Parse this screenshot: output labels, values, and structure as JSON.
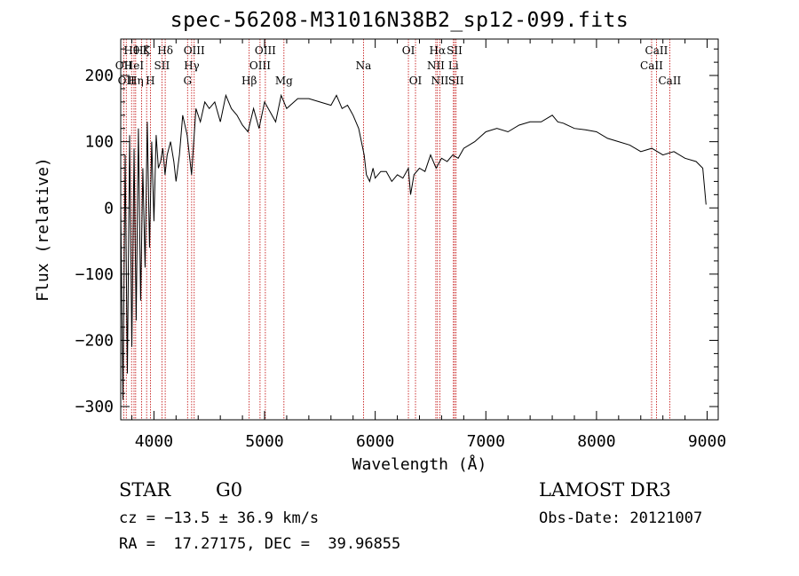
{
  "title": "spec-56208-M31016N38B2_sp12-099.fits",
  "info": {
    "object_class": "STAR",
    "subclass": "G0",
    "survey": "LAMOST DR3",
    "redshift_line": "cz = −13.5 ± 36.9 km/s",
    "obs_date_line": "Obs-Date: 20121007",
    "coords_line": "RA =  17.27175, DEC =  39.96855"
  },
  "colors": {
    "spectrum": "#000000",
    "line_marker": "#c00000",
    "axis": "#000000"
  },
  "chart_data": {
    "type": "line",
    "xlabel": "Wavelength (Å)",
    "ylabel": "Flux (relative)",
    "xlim": [
      3700,
      9100
    ],
    "ylim": [
      -320,
      255
    ],
    "x_ticks": [
      4000,
      5000,
      6000,
      7000,
      8000,
      9000
    ],
    "y_ticks": [
      200,
      100,
      0,
      -100,
      -200,
      -300
    ],
    "series": [
      {
        "x": [
          3700,
          3720,
          3740,
          3760,
          3780,
          3800,
          3820,
          3840,
          3860,
          3880,
          3900,
          3920,
          3940,
          3960,
          3980,
          4000,
          4020,
          4040,
          4060,
          4080,
          4100,
          4120,
          4150,
          4180,
          4200,
          4230,
          4260,
          4300,
          4340,
          4380,
          4420,
          4460,
          4500,
          4550,
          4600,
          4650,
          4700,
          4750,
          4800,
          4850,
          4900,
          4950,
          5000,
          5050,
          5100,
          5150,
          5200,
          5300,
          5400,
          5500,
          5600,
          5650,
          5700,
          5750,
          5800,
          5850,
          5900,
          5920,
          5950,
          5980,
          6000,
          6050,
          6100,
          6150,
          6200,
          6250,
          6300,
          6320,
          6350,
          6400,
          6450,
          6500,
          6550,
          6600,
          6650,
          6700,
          6750,
          6800,
          6900,
          7000,
          7100,
          7200,
          7300,
          7400,
          7500,
          7600,
          7650,
          7700,
          7800,
          7900,
          8000,
          8100,
          8200,
          8300,
          8400,
          8500,
          8600,
          8700,
          8800,
          8900,
          8960,
          8990
        ],
        "y": [
          0,
          -290,
          80,
          -250,
          110,
          -210,
          90,
          -170,
          120,
          -140,
          60,
          -90,
          130,
          -60,
          100,
          -20,
          110,
          60,
          70,
          90,
          50,
          80,
          100,
          70,
          40,
          80,
          140,
          110,
          50,
          150,
          130,
          160,
          150,
          160,
          130,
          170,
          150,
          140,
          125,
          115,
          150,
          120,
          160,
          145,
          130,
          170,
          150,
          165,
          165,
          160,
          155,
          170,
          150,
          155,
          140,
          120,
          80,
          50,
          40,
          60,
          45,
          55,
          55,
          40,
          50,
          45,
          60,
          20,
          50,
          60,
          55,
          80,
          60,
          75,
          70,
          80,
          75,
          90,
          100,
          115,
          120,
          115,
          125,
          130,
          130,
          140,
          130,
          128,
          120,
          118,
          115,
          105,
          100,
          95,
          85,
          90,
          80,
          85,
          75,
          70,
          60,
          5
        ]
      }
    ],
    "line_markers": [
      {
        "wavelength": 3727,
        "label": "OII",
        "row": 2
      },
      {
        "wavelength": 3750,
        "label": "OII",
        "row": 3
      },
      {
        "wavelength": 3798,
        "label": "Hθ",
        "row": 1
      },
      {
        "wavelength": 3835,
        "label": "Hη",
        "row": 3
      },
      {
        "wavelength": 3820,
        "label": "HeI",
        "row": 2
      },
      {
        "wavelength": 3889,
        "label": "Hζ",
        "row": 1
      },
      {
        "wavelength": 3934,
        "label": "K",
        "row": 1
      },
      {
        "wavelength": 3968,
        "label": "H",
        "row": 3
      },
      {
        "wavelength": 4072,
        "label": "SII",
        "row": 2
      },
      {
        "wavelength": 4102,
        "label": "Hδ",
        "row": 1
      },
      {
        "wavelength": 4304,
        "label": "G",
        "row": 3
      },
      {
        "wavelength": 4341,
        "label": "Hγ",
        "row": 2
      },
      {
        "wavelength": 4364,
        "label": "OIII",
        "row": 1
      },
      {
        "wavelength": 4861,
        "label": "Hβ",
        "row": 3
      },
      {
        "wavelength": 4959,
        "label": "OIII",
        "row": 2
      },
      {
        "wavelength": 5007,
        "label": "OIII",
        "row": 1
      },
      {
        "wavelength": 5175,
        "label": "Mg",
        "row": 3
      },
      {
        "wavelength": 5894,
        "label": "Na",
        "row": 2
      },
      {
        "wavelength": 6300,
        "label": "OI",
        "row": 1
      },
      {
        "wavelength": 6364,
        "label": "OI",
        "row": 3
      },
      {
        "wavelength": 6548,
        "label": "NII",
        "row": 2
      },
      {
        "wavelength": 6563,
        "label": "Hα",
        "row": 1
      },
      {
        "wavelength": 6584,
        "label": "NII",
        "row": 3
      },
      {
        "wavelength": 6707,
        "label": "Li",
        "row": 2
      },
      {
        "wavelength": 6717,
        "label": "SII",
        "row": 1
      },
      {
        "wavelength": 6731,
        "label": "SII",
        "row": 3
      },
      {
        "wavelength": 8498,
        "label": "CaII",
        "row": 2
      },
      {
        "wavelength": 8542,
        "label": "CaII",
        "row": 1
      },
      {
        "wavelength": 8662,
        "label": "CaII",
        "row": 3
      }
    ]
  }
}
